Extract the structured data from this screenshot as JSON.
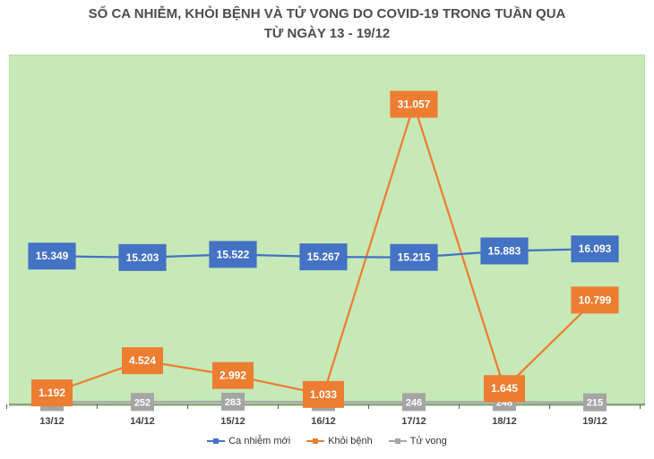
{
  "title_line1": "SỐ CA NHIỄM, KHỎI BỆNH VÀ TỬ VONG DO COVID-19 TRONG TUẦN QUA",
  "title_line2": "TỪ NGÀY 13 - 19/12",
  "chart_data": {
    "type": "line",
    "categories": [
      "13/12",
      "14/12",
      "15/12",
      "16/12",
      "17/12",
      "18/12",
      "19/12"
    ],
    "series": [
      {
        "name": "Ca nhiễm mới",
        "color": "#4472c4",
        "values": [
          15349,
          15203,
          15522,
          15267,
          15215,
          15883,
          16093
        ],
        "labels": [
          "15.349",
          "15.203",
          "15.522",
          "15.267",
          "15.215",
          "15.883",
          "16.093"
        ]
      },
      {
        "name": "Khỏi bệnh",
        "color": "#ed7d31",
        "values": [
          1192,
          4524,
          2992,
          1033,
          31057,
          1645,
          10799
        ],
        "labels": [
          "1.192",
          "4.524",
          "2.992",
          "1.033",
          "31.057",
          "1.645",
          "10.799"
        ]
      },
      {
        "name": "Tử vong",
        "color": "#a5a5a5",
        "values": [
          242,
          252,
          283,
          241,
          246,
          248,
          215
        ],
        "labels": [
          "242",
          "252",
          "283",
          "241",
          "246",
          "248",
          "215"
        ]
      }
    ],
    "ylim": [
      0,
      35000
    ],
    "grid": false,
    "legend": "bottom"
  }
}
